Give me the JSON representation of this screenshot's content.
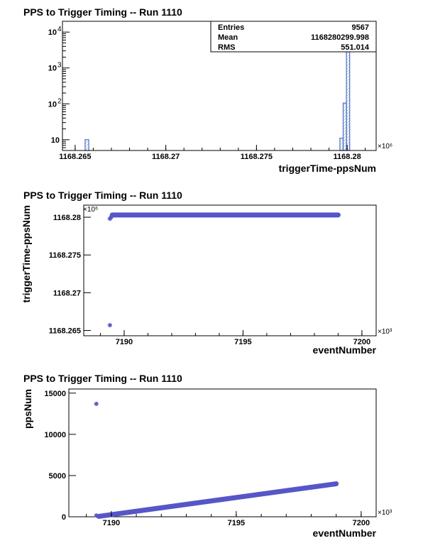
{
  "chart_data": [
    {
      "type": "bar",
      "title": "PPS to Trigger Timing -- Run 1110",
      "xlabel": "triggerTime-ppsNum",
      "ylabel": "",
      "x_exponent": "×10⁶",
      "xlim": [
        1168.2643,
        1168.2816
      ],
      "ylim": [
        5,
        20000
      ],
      "yscale": "log",
      "xticks": [
        {
          "value": 1168.265,
          "label": "1168.265"
        },
        {
          "value": 1168.27,
          "label": "1168.27"
        },
        {
          "value": 1168.275,
          "label": "1168.275"
        },
        {
          "value": 1168.28,
          "label": "1168.28"
        }
      ],
      "yticks": [
        {
          "value": 10,
          "base": "10",
          "exp": ""
        },
        {
          "value": 100,
          "base": "10",
          "exp": "2"
        },
        {
          "value": 1000,
          "base": "10",
          "exp": "3"
        },
        {
          "value": 10000,
          "base": "10",
          "exp": "4"
        }
      ],
      "bins": [
        {
          "x0": 1168.26555,
          "x1": 1168.26575,
          "value": 10
        },
        {
          "x0": 1168.2796,
          "x1": 1168.27978,
          "value": 11
        },
        {
          "x0": 1168.27978,
          "x1": 1168.27996,
          "value": 105
        },
        {
          "x0": 1168.27996,
          "x1": 1168.28014,
          "value": 9400
        }
      ],
      "stats": {
        "rows": [
          {
            "label": "Entries",
            "value": "9567"
          },
          {
            "label": "Mean",
            "value": "1168280299.998"
          },
          {
            "label": "RMS",
            "value": "551.014"
          }
        ]
      },
      "colors": {
        "line": "#4a6fbf",
        "hatch": "#6f8fd0"
      }
    },
    {
      "type": "scatter",
      "title": "PPS to Trigger Timing -- Run 1110",
      "xlabel": "eventNumber",
      "ylabel": "triggerTime-ppsNum",
      "x_exponent": "×10³",
      "y_exponent": "×10⁶",
      "xlim": [
        7188.3,
        7200.6
      ],
      "ylim": [
        1168.2643,
        1168.2816
      ],
      "xticks": [
        {
          "value": 7190,
          "label": "7190"
        },
        {
          "value": 7195,
          "label": "7195"
        },
        {
          "value": 7200,
          "label": "7200"
        }
      ],
      "yticks": [
        {
          "value": 1168.265,
          "label": "1168.265"
        },
        {
          "value": 1168.27,
          "label": "1168.27"
        },
        {
          "value": 1168.275,
          "label": "1168.275"
        },
        {
          "value": 1168.28,
          "label": "1168.28"
        }
      ],
      "points": [
        {
          "x": 7189.4,
          "y": 1168.2657
        },
        {
          "x": 7189.4,
          "y": 1168.2798
        },
        {
          "x": 7189.45,
          "y": 1168.28
        },
        {
          "x": 7189.5,
          "y": 1168.2802
        }
      ],
      "band": {
        "x_start": 7189.5,
        "x_end": 7199.0,
        "y": 1168.2803
      },
      "colors": {
        "marker": "#5656c8"
      }
    },
    {
      "type": "scatter",
      "title": "PPS to Trigger Timing -- Run 1110",
      "xlabel": "eventNumber",
      "ylabel": "ppsNum",
      "x_exponent": "×10³",
      "xlim": [
        7188.3,
        7200.6
      ],
      "ylim": [
        0,
        15500
      ],
      "xticks": [
        {
          "value": 7190,
          "label": "7190"
        },
        {
          "value": 7195,
          "label": "7195"
        },
        {
          "value": 7200,
          "label": "7200"
        }
      ],
      "yticks": [
        {
          "value": 0,
          "label": "0"
        },
        {
          "value": 5000,
          "label": "5000"
        },
        {
          "value": 10000,
          "label": "10000"
        },
        {
          "value": 15000,
          "label": "15000"
        }
      ],
      "points": [
        {
          "x": 7189.4,
          "y": 13700
        },
        {
          "x": 7189.4,
          "y": 150
        }
      ],
      "line": {
        "x_start": 7189.5,
        "y_start": 50,
        "x_end": 7199.0,
        "y_end": 4000
      },
      "colors": {
        "marker": "#5656c8"
      }
    }
  ]
}
